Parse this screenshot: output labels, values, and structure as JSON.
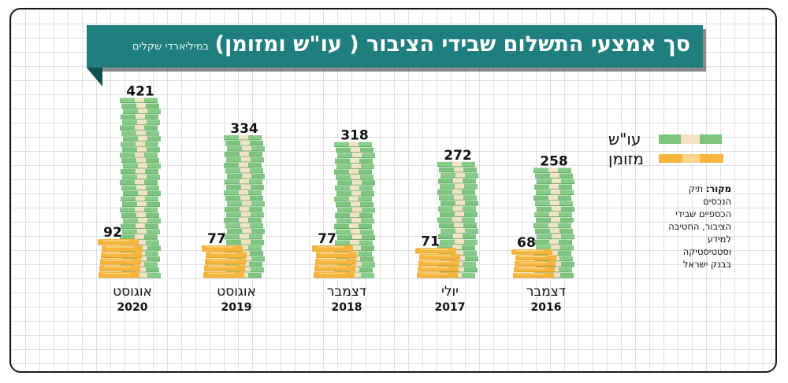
{
  "header": {
    "title": "סך אמצעי התשלום שבידי הציבור ( עו\"ש ומזומן)",
    "subtitle": "במיליארדי שקלים"
  },
  "legend": {
    "checking_label": "עו\"ש",
    "cash_label": "מזומן"
  },
  "source": {
    "label": "מקור:",
    "text": "תיק הנכסים הכספיים שבידי הציבור, החטיבה למידע וסטטיסטיקה בבנק ישראל"
  },
  "colors": {
    "banner": "#1f7f7e",
    "bill_green": "#7dc47f",
    "bill_band": "#f4e2c6",
    "coin_gold": "#f6b53d"
  },
  "chart_data": {
    "type": "bar",
    "categories": [
      {
        "month": "אוגוסט",
        "year": "2020"
      },
      {
        "month": "אוגוסט",
        "year": "2019"
      },
      {
        "month": "דצמבר",
        "year": "2018"
      },
      {
        "month": "יולי",
        "year": "2017"
      },
      {
        "month": "דצמבר",
        "year": "2016"
      }
    ],
    "series": [
      {
        "name": "עו\"ש",
        "values": [
          421,
          334,
          318,
          272,
          258
        ]
      },
      {
        "name": "מזומן",
        "values": [
          92,
          77,
          77,
          71,
          68
        ]
      }
    ],
    "ylim": [
      0,
      430
    ],
    "grid": true,
    "legend_position": "right"
  }
}
